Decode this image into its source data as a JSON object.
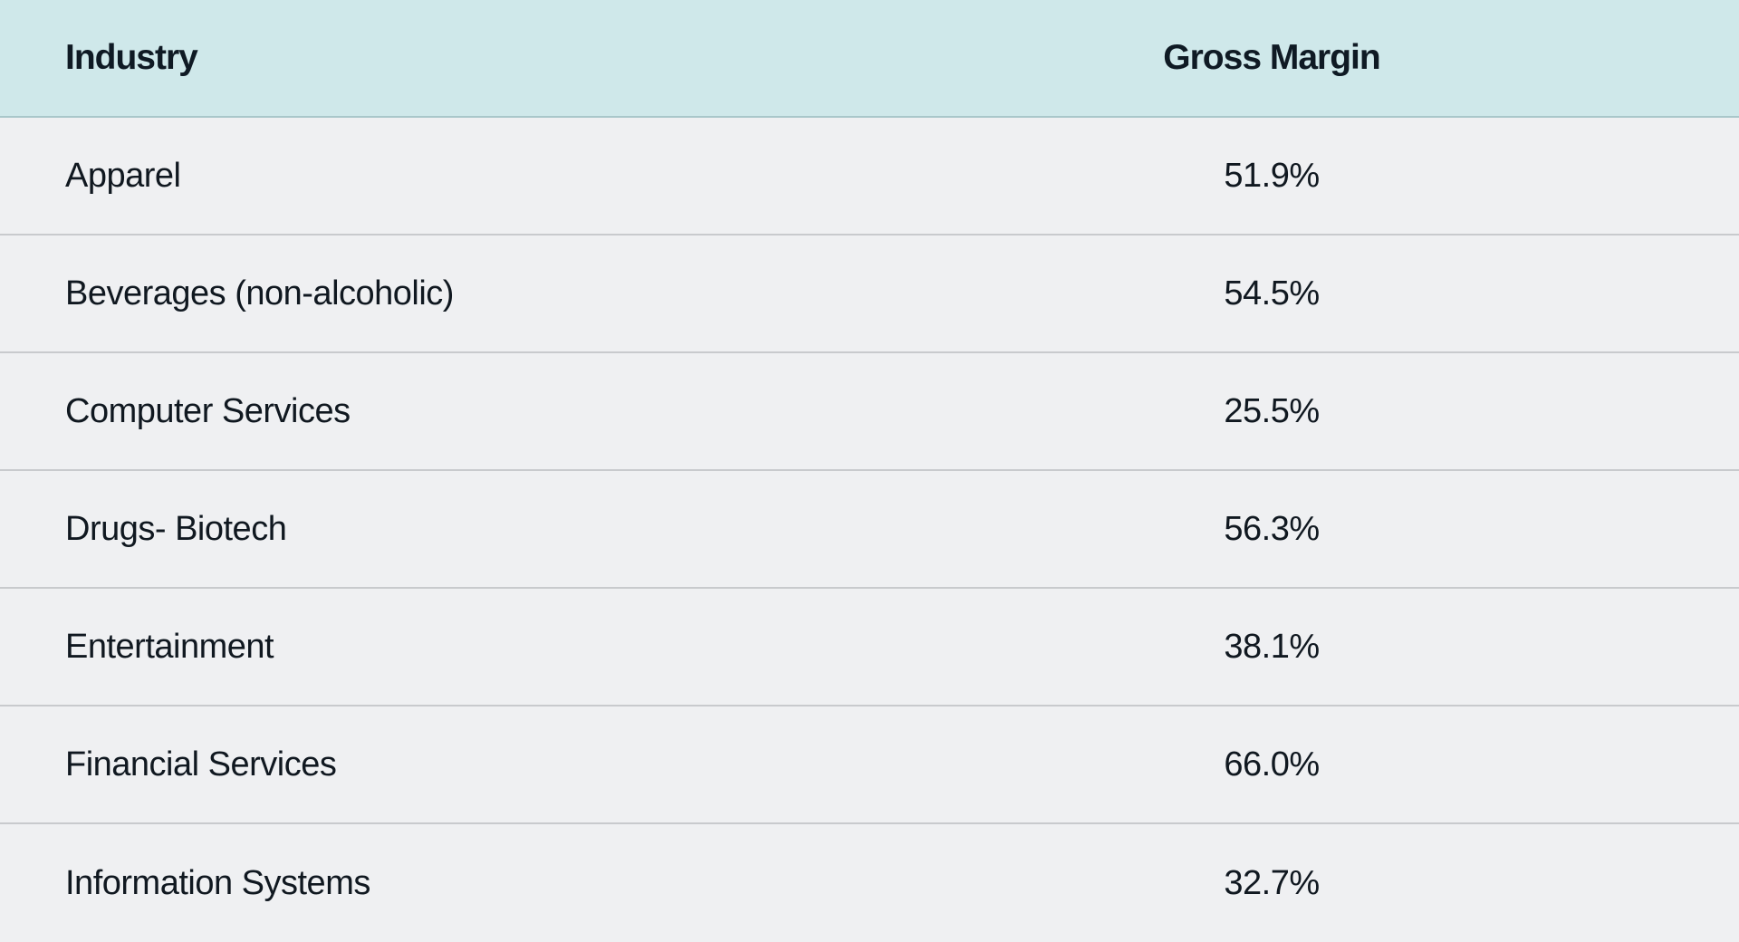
{
  "table": {
    "headers": {
      "industry": "Industry",
      "gross_margin": "Gross Margin"
    },
    "rows": [
      {
        "industry": "Apparel",
        "gross_margin": "51.9%"
      },
      {
        "industry": "Beverages (non-alcoholic)",
        "gross_margin": "54.5%"
      },
      {
        "industry": "Computer Services",
        "gross_margin": "25.5%"
      },
      {
        "industry": "Drugs- Biotech",
        "gross_margin": "56.3%"
      },
      {
        "industry": "Entertainment",
        "gross_margin": "38.1%"
      },
      {
        "industry": "Financial Services",
        "gross_margin": "66.0%"
      },
      {
        "industry": "Information Systems",
        "gross_margin": "32.7%"
      }
    ]
  },
  "colors": {
    "header_background": "#cfe8ea",
    "row_background": "#eff0f2",
    "text": "#101820"
  }
}
